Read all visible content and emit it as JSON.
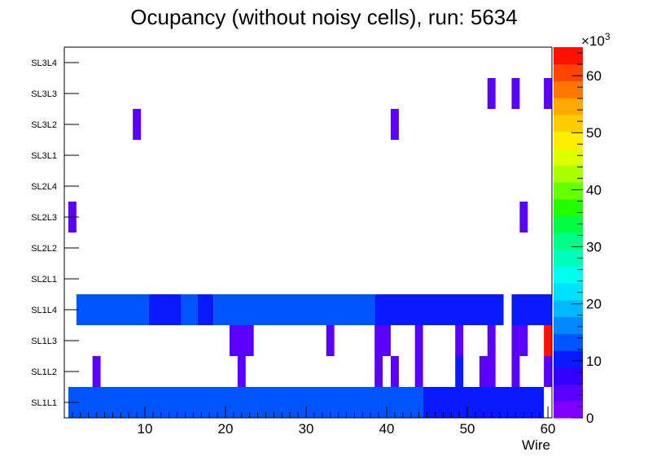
{
  "chart_data": {
    "type": "heatmap",
    "title": "Ocupancy (without noisy cells), run: 5634",
    "xlabel": "Wire",
    "ylabel": "",
    "xlim": [
      0,
      60.5
    ],
    "xticks": [
      10,
      20,
      30,
      40,
      50,
      60
    ],
    "layers": [
      "SL1L1",
      "SL1L2",
      "SL1L3",
      "SL1L4",
      "SL2L1",
      "SL2L2",
      "SL2L3",
      "SL2L4",
      "SL3L1",
      "SL3L2",
      "SL3L3",
      "SL3L4"
    ],
    "zlim": [
      0,
      65000
    ],
    "zticks": [
      0,
      10,
      20,
      30,
      40,
      50,
      60
    ],
    "z_multiplier_label": "×10",
    "z_multiplier_exponent": "3",
    "color_scale": [
      "#7f00ff",
      "#5a00ff",
      "#3300ff",
      "#0a1aff",
      "#0055ff",
      "#0088ff",
      "#00b8ff",
      "#00e0ff",
      "#00ffee",
      "#00ffb8",
      "#00ff88",
      "#00ff44",
      "#22ff00",
      "#66ff00",
      "#aaff00",
      "#ddff00",
      "#ffee00",
      "#ffcc00",
      "#ffaa00",
      "#ff7700",
      "#ff4400",
      "#ff1100"
    ],
    "cells": [
      {
        "layer": "SL1L1",
        "wire_from": 1,
        "wire_to": 44,
        "value": 12000
      },
      {
        "layer": "SL1L1",
        "wire_from": 45,
        "wire_to": 59,
        "value": 9000
      },
      {
        "layer": "SL1L2",
        "wire_from": 4,
        "wire_to": 4,
        "value": 4000
      },
      {
        "layer": "SL1L2",
        "wire_from": 22,
        "wire_to": 22,
        "value": 4000
      },
      {
        "layer": "SL1L2",
        "wire_from": 39,
        "wire_to": 39,
        "value": 4000
      },
      {
        "layer": "SL1L2",
        "wire_from": 41,
        "wire_to": 41,
        "value": 4000
      },
      {
        "layer": "SL1L2",
        "wire_from": 44,
        "wire_to": 44,
        "value": 4000
      },
      {
        "layer": "SL1L2",
        "wire_from": 49,
        "wire_to": 49,
        "value": 11000
      },
      {
        "layer": "SL1L2",
        "wire_from": 52,
        "wire_to": 53,
        "value": 4000
      },
      {
        "layer": "SL1L2",
        "wire_from": 56,
        "wire_to": 56,
        "value": 4000
      },
      {
        "layer": "SL1L2",
        "wire_from": 60,
        "wire_to": 60,
        "value": 4000
      },
      {
        "layer": "SL1L3",
        "wire_from": 21,
        "wire_to": 23,
        "value": 4000
      },
      {
        "layer": "SL1L3",
        "wire_from": 33,
        "wire_to": 33,
        "value": 4000
      },
      {
        "layer": "SL1L3",
        "wire_from": 39,
        "wire_to": 40,
        "value": 4000
      },
      {
        "layer": "SL1L3",
        "wire_from": 44,
        "wire_to": 44,
        "value": 4000
      },
      {
        "layer": "SL1L3",
        "wire_from": 49,
        "wire_to": 49,
        "value": 4000
      },
      {
        "layer": "SL1L3",
        "wire_from": 53,
        "wire_to": 53,
        "value": 4000
      },
      {
        "layer": "SL1L3",
        "wire_from": 56,
        "wire_to": 56,
        "value": 4000
      },
      {
        "layer": "SL1L3",
        "wire_from": 57,
        "wire_to": 57,
        "value": 4000
      },
      {
        "layer": "SL1L3",
        "wire_from": 60,
        "wire_to": 60,
        "value": 63000
      },
      {
        "layer": "SL1L4",
        "wire_from": 2,
        "wire_to": 10,
        "value": 12000
      },
      {
        "layer": "SL1L4",
        "wire_from": 11,
        "wire_to": 14,
        "value": 9000
      },
      {
        "layer": "SL1L4",
        "wire_from": 15,
        "wire_to": 16,
        "value": 12000
      },
      {
        "layer": "SL1L4",
        "wire_from": 17,
        "wire_to": 18,
        "value": 9000
      },
      {
        "layer": "SL1L4",
        "wire_from": 19,
        "wire_to": 38,
        "value": 12000
      },
      {
        "layer": "SL1L4",
        "wire_from": 39,
        "wire_to": 54,
        "value": 9000
      },
      {
        "layer": "SL1L4",
        "wire_from": 56,
        "wire_to": 60,
        "value": 9000
      },
      {
        "layer": "SL2L3",
        "wire_from": 1,
        "wire_to": 1,
        "value": 4000
      },
      {
        "layer": "SL2L3",
        "wire_from": 57,
        "wire_to": 57,
        "value": 4000
      },
      {
        "layer": "SL3L2",
        "wire_from": 9,
        "wire_to": 9,
        "value": 4000
      },
      {
        "layer": "SL3L2",
        "wire_from": 41,
        "wire_to": 41,
        "value": 4000
      },
      {
        "layer": "SL3L3",
        "wire_from": 53,
        "wire_to": 53,
        "value": 4000
      },
      {
        "layer": "SL3L3",
        "wire_from": 56,
        "wire_to": 56,
        "value": 4000
      },
      {
        "layer": "SL3L3",
        "wire_from": 60,
        "wire_to": 60,
        "value": 4000
      }
    ]
  }
}
